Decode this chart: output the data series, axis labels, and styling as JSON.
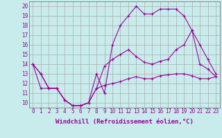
{
  "background_color": "#c8ecec",
  "line_color": "#990099",
  "grid_color": "#aaaaaa",
  "xlabel": "Windchill (Refroidissement éolien,°C)",
  "ylabel_ticks": [
    10,
    11,
    12,
    13,
    14,
    15,
    16,
    17,
    18,
    19,
    20
  ],
  "xticks": [
    0,
    1,
    2,
    3,
    4,
    5,
    6,
    7,
    8,
    9,
    10,
    11,
    12,
    13,
    14,
    15,
    16,
    17,
    18,
    19,
    20,
    21,
    22,
    23
  ],
  "ylim": [
    9.5,
    20.5
  ],
  "xlim": [
    -0.5,
    23.5
  ],
  "line1_x": [
    0,
    1,
    2,
    3,
    4,
    5,
    6,
    7,
    8,
    9,
    10,
    11,
    12,
    13,
    14,
    15,
    16,
    17,
    18,
    19,
    20,
    21,
    22,
    23
  ],
  "line1_y": [
    14.0,
    13.0,
    11.5,
    11.5,
    10.3,
    9.7,
    9.7,
    10.0,
    13.0,
    11.0,
    16.0,
    18.0,
    19.0,
    20.0,
    19.2,
    19.2,
    19.7,
    19.7,
    19.7,
    19.0,
    17.5,
    14.0,
    13.5,
    12.7
  ],
  "line2_x": [
    0,
    1,
    2,
    3,
    4,
    5,
    6,
    7,
    8,
    9,
    10,
    11,
    12,
    13,
    14,
    15,
    16,
    17,
    18,
    19,
    20,
    21,
    22,
    23
  ],
  "line2_y": [
    14.0,
    13.0,
    11.5,
    11.5,
    10.3,
    9.7,
    9.7,
    10.0,
    11.5,
    13.8,
    14.5,
    15.0,
    15.5,
    14.8,
    14.2,
    14.0,
    14.3,
    14.5,
    15.5,
    16.0,
    17.5,
    16.0,
    14.5,
    13.0
  ],
  "line3_x": [
    0,
    1,
    2,
    3,
    4,
    5,
    6,
    7,
    8,
    9,
    10,
    11,
    12,
    13,
    14,
    15,
    16,
    17,
    18,
    19,
    20,
    21,
    22,
    23
  ],
  "line3_y": [
    14.0,
    11.5,
    11.5,
    11.5,
    10.3,
    9.7,
    9.7,
    10.0,
    11.5,
    11.8,
    12.0,
    12.2,
    12.5,
    12.7,
    12.5,
    12.5,
    12.8,
    12.9,
    13.0,
    13.0,
    12.8,
    12.5,
    12.5,
    12.7
  ],
  "marker": "+",
  "markersize": 3,
  "linewidth": 0.8,
  "tick_fontsize": 5.5,
  "label_fontsize": 6.5
}
